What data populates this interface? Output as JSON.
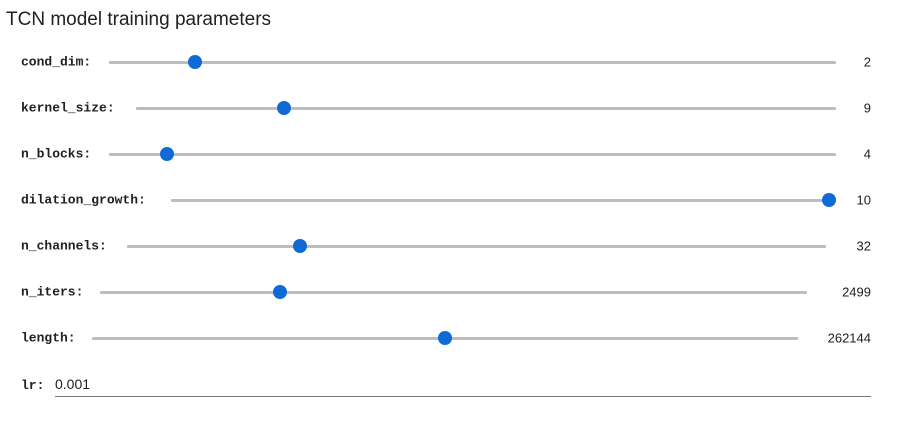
{
  "title": "TCN model training parameters",
  "sliders": [
    {
      "label": "cond_dim:",
      "value": "2",
      "fraction": 0.118
    },
    {
      "label": "kernel_size:",
      "value": "9",
      "fraction": 0.212
    },
    {
      "label": "n_blocks:",
      "value": "4",
      "fraction": 0.08
    },
    {
      "label": "dilation_growth:",
      "value": "10",
      "fraction": 1.0
    },
    {
      "label": "n_channels:",
      "value": "32",
      "fraction": 0.248
    },
    {
      "label": "n_iters:",
      "value": "2499",
      "fraction": 0.255
    },
    {
      "label": "length:",
      "value": "262144",
      "fraction": 0.5
    }
  ],
  "lr": {
    "label": "lr:",
    "value": "0.001"
  },
  "colors": {
    "thumb": "#0f6ad6",
    "track": "#bdbdbd"
  }
}
